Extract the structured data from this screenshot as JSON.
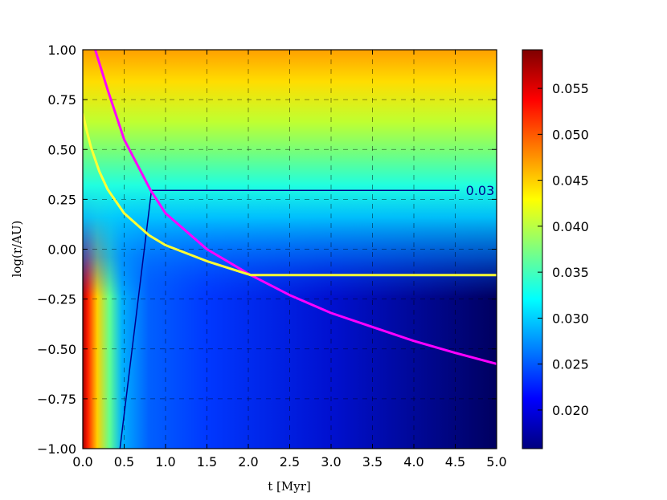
{
  "chart_data": {
    "type": "heatmap",
    "xlabel": "t [Myr]",
    "ylabel": "log(r/AU)",
    "xlim": [
      0,
      5
    ],
    "ylim": [
      -1,
      1
    ],
    "xticks": [
      "0.0",
      "0.5",
      "1.0",
      "1.5",
      "2.0",
      "2.5",
      "3.0",
      "3.5",
      "4.0",
      "4.5",
      "5.0"
    ],
    "yticks": [
      "1.00",
      "0.75",
      "0.50",
      "0.25",
      "0.00",
      "−0.25",
      "−0.50",
      "−0.75",
      "−1.00"
    ],
    "grid": true,
    "colormap": "jet",
    "colorbar": {
      "range": [
        0.0158,
        0.0592
      ],
      "ticks": [
        {
          "value": 0.055,
          "label": "0.055"
        },
        {
          "value": 0.05,
          "label": "0.050"
        },
        {
          "value": 0.045,
          "label": "0.045"
        },
        {
          "value": 0.04,
          "label": "0.040"
        },
        {
          "value": 0.035,
          "label": "0.035"
        },
        {
          "value": 0.03,
          "label": "0.030"
        },
        {
          "value": 0.025,
          "label": "0.025"
        },
        {
          "value": 0.02,
          "label": "0.020"
        }
      ]
    },
    "series": [
      {
        "color": "#ff00ff",
        "x": [
          0.15,
          0.3,
          0.5,
          0.82,
          1.0,
          1.5,
          2.03,
          2.5,
          3.0,
          3.5,
          4.0,
          4.5,
          5.0
        ],
        "y": [
          1.0,
          0.8,
          0.55,
          0.295,
          0.18,
          -0.0,
          -0.13,
          -0.23,
          -0.32,
          -0.39,
          -0.46,
          -0.52,
          -0.575
        ]
      },
      {
        "color": "#ffff33",
        "x": [
          0.0,
          0.05,
          0.1,
          0.2,
          0.3,
          0.5,
          0.8,
          1.0,
          1.5,
          2.03,
          3.0,
          4.0,
          5.0
        ],
        "y": [
          0.68,
          0.59,
          0.51,
          0.39,
          0.3,
          0.18,
          0.07,
          0.02,
          -0.06,
          -0.13,
          -0.13,
          -0.13,
          -0.13
        ]
      }
    ],
    "contour": {
      "level_label": "0.03",
      "color": "#00008b",
      "x": [
        0.45,
        0.83,
        4.55
      ],
      "y": [
        -1.0,
        0.295,
        0.295
      ]
    }
  }
}
